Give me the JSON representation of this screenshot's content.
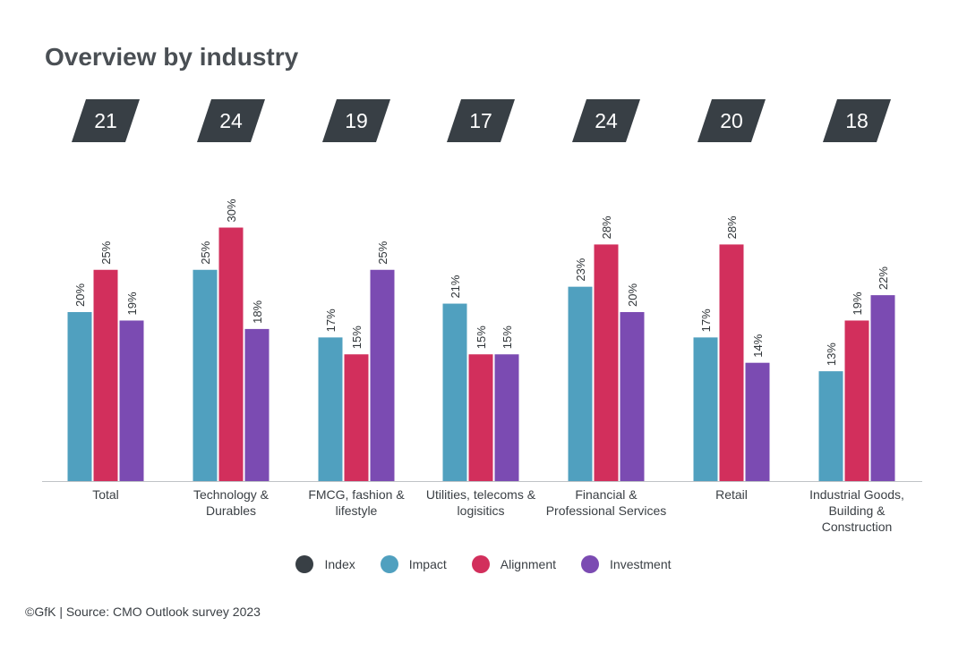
{
  "title": "Overview by industry",
  "source": "©GfK | Source: CMO Outlook survey 2023",
  "colors": {
    "index": "#383f45",
    "impact": "#50a0bf",
    "alignment": "#d22f5c",
    "investment": "#7b4bb2"
  },
  "legend": [
    {
      "label": "Index",
      "color": "#383f45"
    },
    {
      "label": "Impact",
      "color": "#50a0bf"
    },
    {
      "label": "Alignment",
      "color": "#d22f5c"
    },
    {
      "label": "Investment",
      "color": "#7b4bb2"
    }
  ],
  "chart_data": {
    "type": "bar",
    "title": "Overview by industry",
    "categories": [
      [
        "Total"
      ],
      [
        "Technology &",
        "Durables"
      ],
      [
        "FMCG, fashion &",
        "lifestyle"
      ],
      [
        "Utilities, telecoms &",
        "logisitics"
      ],
      [
        "Financial &",
        "Professional Services"
      ],
      [
        "Retail"
      ],
      [
        "Industrial Goods,",
        "Building &",
        "Construction"
      ]
    ],
    "index": [
      21,
      24,
      19,
      17,
      24,
      20,
      18
    ],
    "series": [
      {
        "name": "Impact",
        "color": "#50a0bf",
        "values": [
          20,
          25,
          17,
          21,
          23,
          17,
          13
        ]
      },
      {
        "name": "Alignment",
        "color": "#d22f5c",
        "values": [
          25,
          30,
          15,
          15,
          28,
          28,
          19
        ]
      },
      {
        "name": "Investment",
        "color": "#7b4bb2",
        "values": [
          19,
          18,
          25,
          15,
          20,
          14,
          22
        ]
      }
    ],
    "value_suffix": "%",
    "ylim": [
      0,
      30
    ],
    "grid": false,
    "legend_position": "bottom"
  }
}
